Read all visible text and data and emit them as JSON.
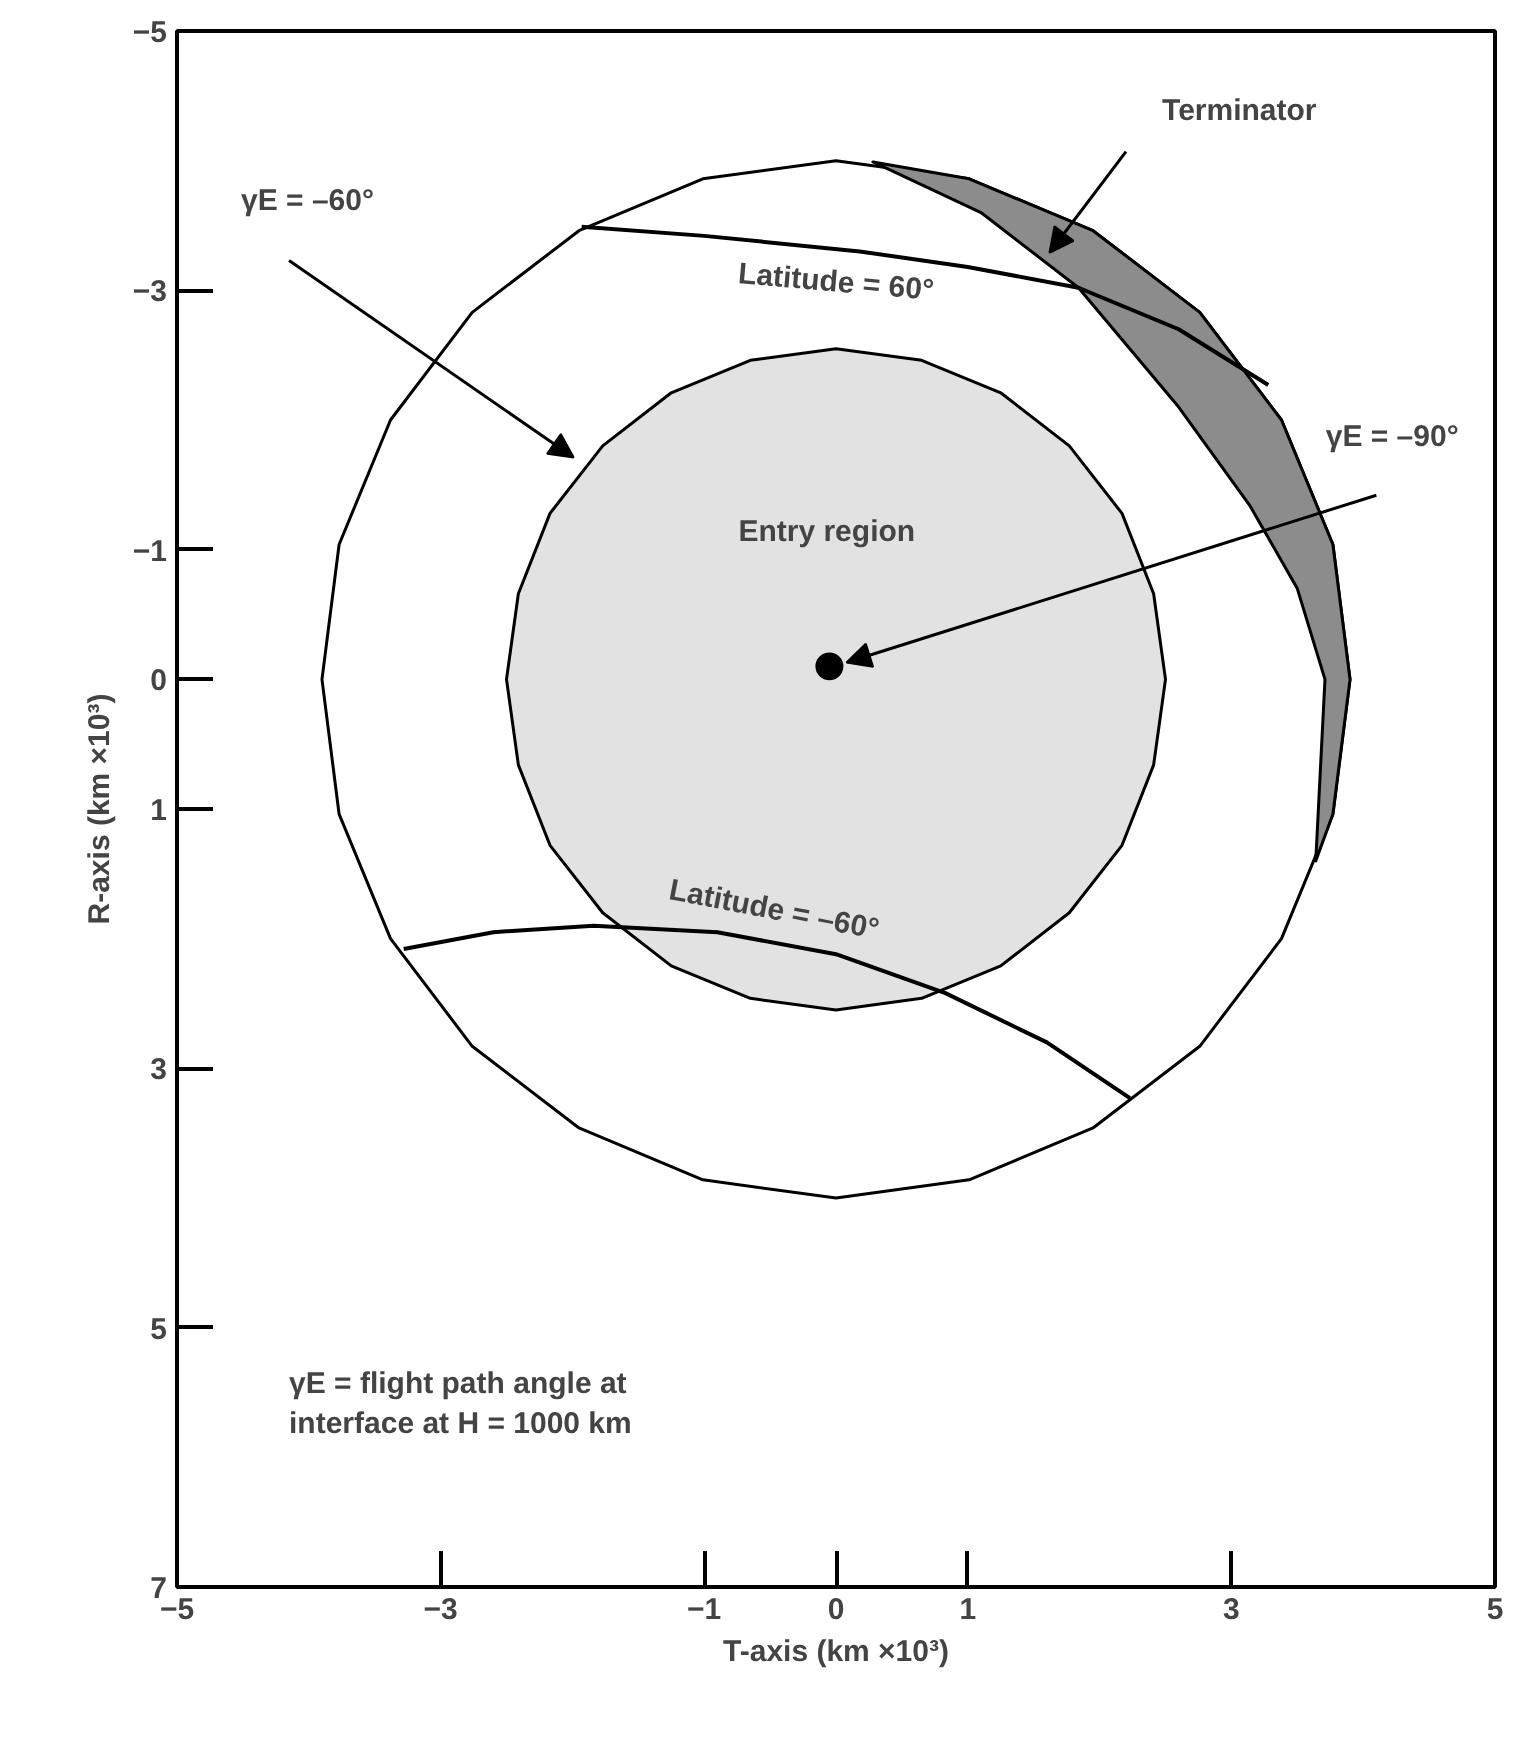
{
  "chart_data": {
    "type": "area",
    "xlabel": "T-axis (km ×10³)",
    "ylabel": "R-axis (km ×10³)",
    "xlim": [
      -5,
      5
    ],
    "ylim": [
      7,
      -5
    ],
    "xticks": [
      -5,
      -3,
      -1,
      0,
      1,
      3,
      5
    ],
    "yticks": [
      -5,
      -3,
      -1,
      0,
      1,
      3,
      5,
      7
    ],
    "series": [
      {
        "color": "#ffffff",
        "x": [
          3.9,
          3.77,
          3.38,
          2.76,
          1.95,
          1.01,
          0,
          -1.01,
          -1.95,
          -2.76,
          -3.38,
          -3.77,
          -3.9,
          -3.77,
          -3.38,
          -2.76,
          -1.95,
          -1.01,
          0,
          1.01,
          1.95,
          2.76,
          3.38,
          3.77
        ],
        "values": [
          0,
          1.04,
          2.0,
          2.83,
          3.46,
          3.86,
          4,
          3.86,
          3.46,
          2.83,
          2.0,
          1.04,
          0,
          -1.04,
          -2.0,
          -2.83,
          -3.46,
          -3.86,
          -4,
          -3.86,
          -3.46,
          -2.83,
          -2.0,
          -1.04
        ]
      },
      {
        "color": "#e2e2e2",
        "x": [
          2.5,
          2.41,
          2.17,
          1.77,
          1.25,
          0.65,
          0,
          -0.65,
          -1.25,
          -1.77,
          -2.17,
          -2.41,
          -2.5,
          -2.41,
          -2.17,
          -1.77,
          -1.25,
          -0.65,
          0,
          0.65,
          1.25,
          1.77,
          2.17,
          2.41
        ],
        "values": [
          0,
          0.66,
          1.28,
          1.8,
          2.21,
          2.46,
          2.55,
          2.46,
          2.21,
          1.8,
          1.28,
          0.66,
          0,
          -0.66,
          -1.28,
          -1.8,
          -2.21,
          -2.46,
          -2.55,
          -2.46,
          -2.21,
          -1.8,
          -1.28,
          -0.66
        ]
      },
      {
        "color": "#8c8c8c",
        "x": [
          0.28,
          1.01,
          1.95,
          2.76,
          3.38,
          3.77,
          3.9,
          3.77,
          3.64,
          3.71,
          3.5,
          3.14,
          2.6,
          1.84,
          1.1,
          0.28
        ],
        "values": [
          -3.99,
          -3.86,
          -3.46,
          -2.83,
          -2.0,
          -1.04,
          0,
          1.04,
          1.4,
          0.0,
          -0.7,
          -1.34,
          -2.1,
          -3.02,
          -3.6,
          -3.99
        ]
      },
      {
        "type": "line",
        "color": "#000000",
        "x": [
          -1.93,
          -1.0,
          0.18,
          1.0,
          1.84,
          2.6,
          3.28
        ],
        "values": [
          -3.49,
          -3.42,
          -3.3,
          -3.18,
          -3.02,
          -2.7,
          -2.27
        ]
      },
      {
        "type": "line",
        "color": "#000000",
        "x": [
          -3.28,
          -2.6,
          -1.84,
          -0.9,
          0,
          0.83,
          1.6,
          2.23
        ],
        "values": [
          2.08,
          1.95,
          1.9,
          1.95,
          2.12,
          2.42,
          2.8,
          3.23
        ]
      },
      {
        "type": "scatter",
        "color": "#000000",
        "marker": "circle",
        "x": [
          -0.05
        ],
        "values": [
          -0.1
        ]
      }
    ],
    "annotations": [
      "Terminator",
      "γE = –60°",
      "γE = –90°",
      "Latitude = 60°",
      "Latitude = –60°",
      "Entry region",
      "γE = flight path angle at\ninterface at H = 1000 km"
    ]
  }
}
